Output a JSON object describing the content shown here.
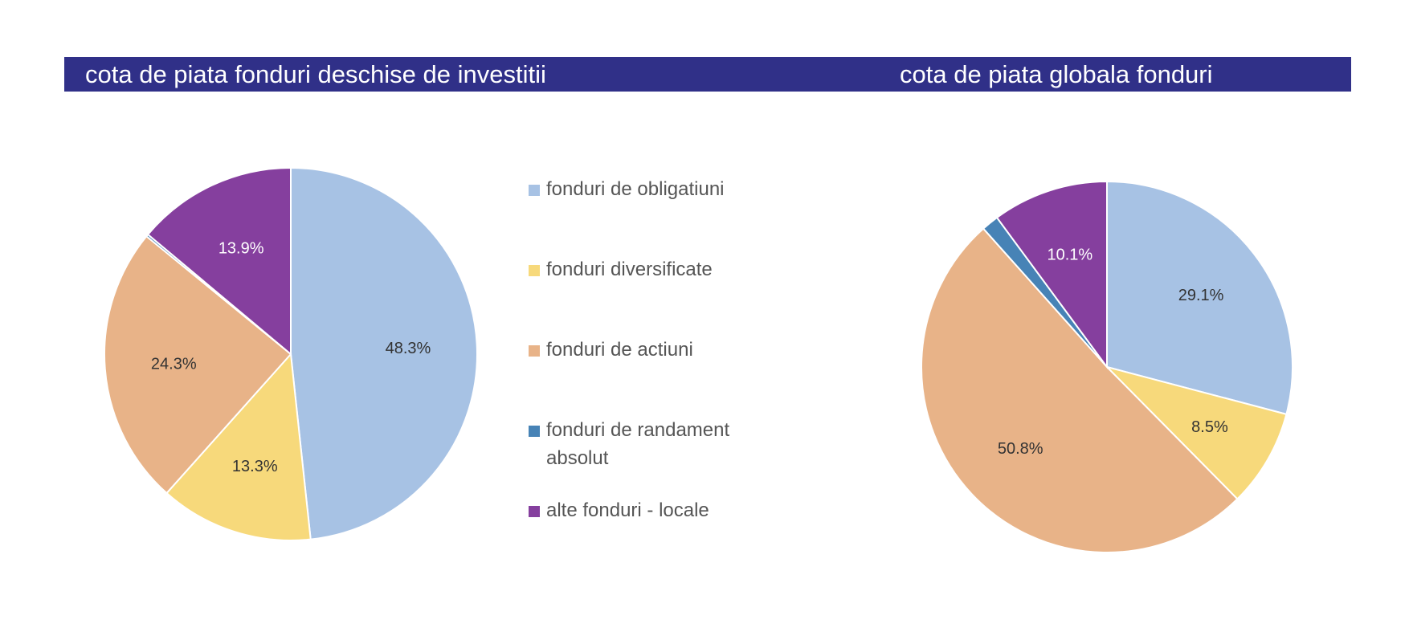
{
  "header": {
    "left_title": "cota de piata fonduri deschise de investitii",
    "right_title": "cota de piata globala fonduri"
  },
  "colors": {
    "header_bg": "#303088",
    "obligatiuni": "#A7C2E4",
    "diversificate": "#F7D97B",
    "actiuni": "#E8B388",
    "randament_absolut": "#4783B6",
    "alte": "#853F9E"
  },
  "legend": [
    {
      "label": "fonduri de obligatiuni",
      "color": "#A7C2E4"
    },
    {
      "label": "fonduri diversificate",
      "color": "#F7D97B"
    },
    {
      "label": "fonduri de actiuni",
      "color": "#E8B388"
    },
    {
      "label": "fonduri de randament absolut",
      "color": "#4783B6"
    },
    {
      "label": "alte fonduri - locale",
      "color": "#853F9E"
    }
  ],
  "chart_data": [
    {
      "type": "pie",
      "title": "cota de piata fonduri deschise de investitii",
      "categories": [
        "fonduri de obligatiuni",
        "fonduri diversificate",
        "fonduri de actiuni",
        "fonduri de randament absolut",
        "alte fonduri - locale"
      ],
      "values": [
        48.3,
        13.3,
        24.3,
        0.2,
        13.9
      ],
      "data_labels": [
        "48.3%",
        "13.3%",
        "24.3%",
        "",
        "13.9%"
      ],
      "colors": [
        "#A7C2E4",
        "#F7D97B",
        "#E8B388",
        "#4783B6",
        "#853F9E"
      ],
      "label_colors": [
        "#333333",
        "#333333",
        "#333333",
        "#333333",
        "#ffffff"
      ],
      "legend": "right"
    },
    {
      "type": "pie",
      "title": "cota de piata globala fonduri",
      "categories": [
        "fonduri de obligatiuni",
        "fonduri diversificate",
        "fonduri de actiuni",
        "fonduri de randament absolut",
        "alte fonduri - locale"
      ],
      "values": [
        29.1,
        8.5,
        50.8,
        1.5,
        10.1
      ],
      "data_labels": [
        "29.1%",
        "8.5%",
        "50.8%",
        "",
        "10.1%"
      ],
      "colors": [
        "#A7C2E4",
        "#F7D97B",
        "#E8B388",
        "#4783B6",
        "#853F9E"
      ],
      "label_colors": [
        "#333333",
        "#333333",
        "#333333",
        "#333333",
        "#ffffff"
      ]
    }
  ]
}
